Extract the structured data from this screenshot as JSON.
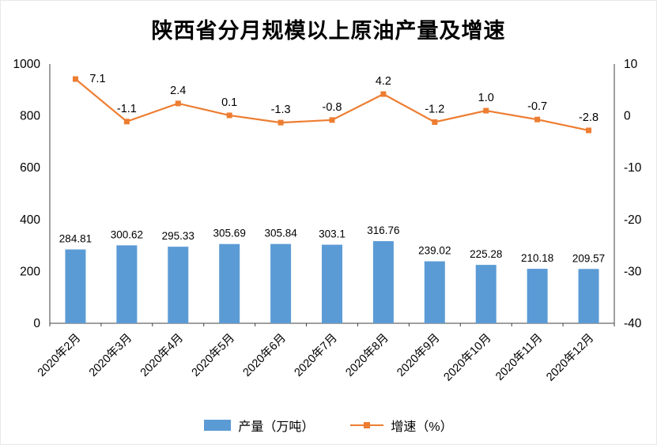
{
  "title": "陕西省分月规模以上原油产量及增速",
  "chart_data": {
    "type": "bar+line",
    "title": "陕西省分月规模以上原油产量及增速",
    "categories": [
      "2020年2月",
      "2020年3月",
      "2020年4月",
      "2020年5月",
      "2020年6月",
      "2020年7月",
      "2020年8月",
      "2020年9月",
      "2020年10月",
      "2020年11月",
      "2020年12月"
    ],
    "series": [
      {
        "name": "产量（万吨）",
        "type": "bar",
        "axis": "left",
        "color": "#5B9BD5",
        "values": [
          284.81,
          300.62,
          295.33,
          305.69,
          305.84,
          303.1,
          316.76,
          239.02,
          225.28,
          210.18,
          209.57
        ],
        "labels": [
          "284.81",
          "300.62",
          "295.33",
          "305.69",
          "305.84",
          "303.1",
          "316.76",
          "239.02",
          "225.28",
          "210.18",
          "209.57"
        ]
      },
      {
        "name": "增速（%）",
        "type": "line",
        "axis": "right",
        "color": "#ED7D31",
        "values": [
          7.1,
          -1.1,
          2.4,
          0.1,
          -1.3,
          -0.8,
          4.2,
          -1.2,
          1.0,
          -0.7,
          -2.8
        ],
        "labels": [
          "7.1",
          "-1.1",
          "2.4",
          "0.1",
          "-1.3",
          "-0.8",
          "4.2",
          "-1.2",
          "1.0",
          "-0.7",
          "-2.8"
        ]
      }
    ],
    "left_axis": {
      "min": 0,
      "max": 1000,
      "ticks": [
        0,
        200,
        400,
        600,
        800,
        1000
      ]
    },
    "right_axis": {
      "min": -40,
      "max": 10,
      "ticks": [
        -40,
        -30,
        -20,
        -10,
        0,
        10
      ]
    },
    "grid": false,
    "legend_position": "bottom"
  }
}
